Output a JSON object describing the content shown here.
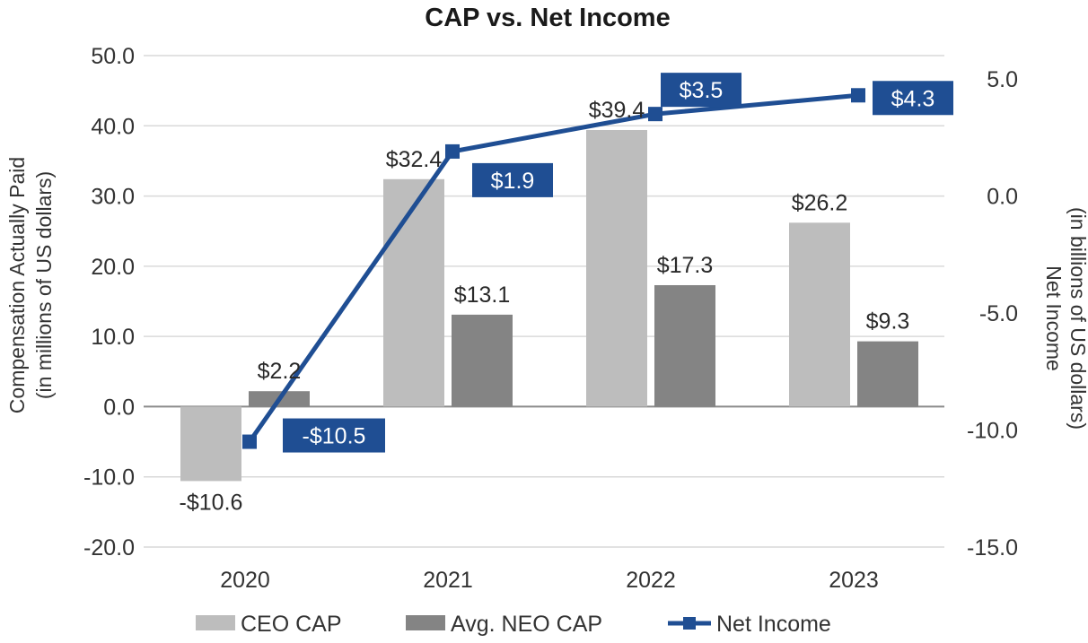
{
  "chart_data": {
    "type": "bar",
    "title": "CAP vs. Net Income",
    "categories": [
      "2020",
      "2021",
      "2022",
      "2023"
    ],
    "series": [
      {
        "name": "CEO CAP",
        "kind": "bar",
        "axis": "left",
        "color": "#bdbdbd",
        "values": [
          -10.6,
          32.4,
          39.4,
          26.2
        ],
        "labels": [
          "-$10.6",
          "$32.4",
          "$39.4",
          "$26.2"
        ]
      },
      {
        "name": "Avg. NEO CAP",
        "kind": "bar",
        "axis": "left",
        "color": "#848484",
        "values": [
          2.2,
          13.1,
          17.3,
          9.3
        ],
        "labels": [
          "$2.2",
          "$13.1",
          "$17.3",
          "$9.3"
        ]
      },
      {
        "name": "Net Income",
        "kind": "line",
        "axis": "right",
        "color": "#1f4e93",
        "values": [
          -10.5,
          1.9,
          3.5,
          4.3
        ],
        "labels": [
          "-$10.5",
          "$1.9",
          "$3.5",
          "$4.3"
        ]
      }
    ],
    "left_axis": {
      "label_line1": "Compensation Actually Paid",
      "label_line2": "(in millions of US dollars)",
      "range": [
        -20,
        50
      ],
      "ticks": [
        50,
        40,
        30,
        20,
        10,
        0,
        -10,
        -20
      ],
      "tick_labels": [
        "50.0",
        "40.0",
        "30.0",
        "20.0",
        "10.0",
        "0.0",
        "-10.0",
        "-20.0"
      ]
    },
    "right_axis": {
      "label_line1": "Net Income",
      "label_line2": "(in billions of US dollars)",
      "range": [
        -15,
        5
      ],
      "ticks": [
        5,
        0,
        -5,
        -10,
        -15
      ],
      "tick_labels": [
        "5.0",
        "0.0",
        "-5.0",
        "-10.0",
        "-15.0"
      ]
    },
    "grid": true,
    "legend_position": "bottom"
  }
}
